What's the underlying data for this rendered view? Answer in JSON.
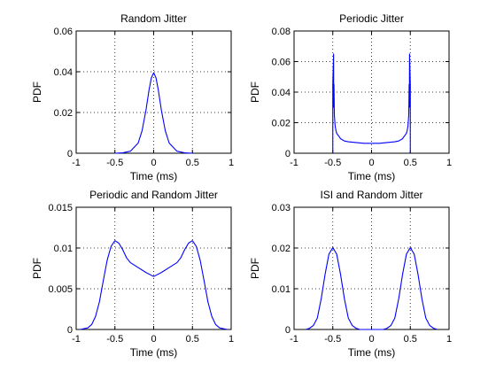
{
  "figure": {
    "background": "#ffffff",
    "line_color": "#0000ff"
  },
  "chart_data": [
    {
      "type": "line",
      "title": "Random Jitter",
      "xlabel": "Time (ms)",
      "ylabel": "PDF",
      "xlim": [
        -1,
        1
      ],
      "ylim": [
        0,
        0.06
      ],
      "xticks": [
        "-1",
        "-0.5",
        "0",
        "0.5",
        "1"
      ],
      "yticks": [
        "0",
        "0.02",
        "0.04",
        "0.06"
      ],
      "grid": true,
      "series": [
        {
          "x": [
            -0.5,
            -0.4,
            -0.3,
            -0.2,
            -0.15,
            -0.1,
            -0.06,
            -0.03,
            0,
            0.03,
            0.06,
            0.1,
            0.15,
            0.2,
            0.3,
            0.4,
            0.5
          ],
          "y": [
            0,
            0.0002,
            0.001,
            0.005,
            0.011,
            0.021,
            0.031,
            0.037,
            0.0395,
            0.037,
            0.031,
            0.021,
            0.011,
            0.005,
            0.001,
            0.0002,
            0
          ]
        }
      ]
    },
    {
      "type": "line",
      "title": "Periodic Jitter",
      "xlabel": "Time (ms)",
      "ylabel": "PDF",
      "xlim": [
        -1,
        1
      ],
      "ylim": [
        0,
        0.08
      ],
      "xticks": [
        "-1",
        "-0.5",
        "0",
        "0.5",
        "1"
      ],
      "yticks": [
        "0",
        "0.02",
        "0.04",
        "0.06",
        "0.08"
      ],
      "grid": true,
      "series": [
        {
          "x": [
            -0.5,
            -0.5,
            -0.49,
            -0.488,
            -0.485,
            -0.48,
            -0.47,
            -0.46,
            -0.45,
            -0.42,
            -0.4,
            -0.35,
            -0.3,
            -0.2,
            -0.1,
            0,
            0.1,
            0.2,
            0.3,
            0.35,
            0.4,
            0.42,
            0.45,
            0.46,
            0.47,
            0.48,
            0.485,
            0.488,
            0.49,
            0.5,
            0.5
          ],
          "y": [
            0,
            0.045,
            0.065,
            0.03,
            0.045,
            0.025,
            0.018,
            0.015,
            0.013,
            0.011,
            0.0095,
            0.008,
            0.0075,
            0.007,
            0.0065,
            0.0065,
            0.0065,
            0.007,
            0.0075,
            0.008,
            0.0095,
            0.011,
            0.013,
            0.015,
            0.018,
            0.025,
            0.045,
            0.03,
            0.065,
            0.045,
            0
          ]
        }
      ]
    },
    {
      "type": "line",
      "title": "Periodic and Random Jitter",
      "xlabel": "Time (ms)",
      "ylabel": "PDF",
      "xlim": [
        -1,
        1
      ],
      "ylim": [
        0,
        0.015
      ],
      "xticks": [
        "-1",
        "-0.5",
        "0",
        "0.5",
        "1"
      ],
      "yticks": [
        "0",
        "0.005",
        "0.01",
        "0.015"
      ],
      "grid": true,
      "series": [
        {
          "x": [
            -0.95,
            -0.85,
            -0.8,
            -0.75,
            -0.7,
            -0.65,
            -0.6,
            -0.55,
            -0.5,
            -0.45,
            -0.4,
            -0.35,
            -0.3,
            -0.25,
            -0.2,
            -0.1,
            0,
            0.1,
            0.2,
            0.25,
            0.3,
            0.35,
            0.4,
            0.45,
            0.5,
            0.55,
            0.6,
            0.65,
            0.7,
            0.75,
            0.8,
            0.85,
            0.95
          ],
          "y": [
            0,
            0.0002,
            0.0006,
            0.0016,
            0.0034,
            0.006,
            0.0085,
            0.0102,
            0.0109,
            0.0106,
            0.0098,
            0.0088,
            0.0082,
            0.0079,
            0.0076,
            0.007,
            0.0065,
            0.007,
            0.0076,
            0.0079,
            0.0082,
            0.0088,
            0.0098,
            0.0106,
            0.0109,
            0.0102,
            0.0085,
            0.006,
            0.0034,
            0.0016,
            0.0006,
            0.0002,
            0
          ]
        }
      ]
    },
    {
      "type": "line",
      "title": "ISI and Random Jitter",
      "xlabel": "Time (ms)",
      "ylabel": "PDF",
      "xlim": [
        -1,
        1
      ],
      "ylim": [
        0,
        0.03
      ],
      "xticks": [
        "-1",
        "-0.5",
        "0",
        "0.5",
        "1"
      ],
      "yticks": [
        "0",
        "0.01",
        "0.02",
        "0.03"
      ],
      "grid": true,
      "series": [
        {
          "x": [
            -0.85,
            -0.8,
            -0.75,
            -0.7,
            -0.65,
            -0.6,
            -0.55,
            -0.5,
            -0.45,
            -0.4,
            -0.35,
            -0.3,
            -0.25,
            -0.2,
            -0.15,
            0,
            0.15,
            0.2,
            0.25,
            0.3,
            0.35,
            0.4,
            0.45,
            0.5,
            0.55,
            0.6,
            0.65,
            0.7,
            0.75,
            0.8,
            0.85
          ],
          "y": [
            0,
            0.0003,
            0.001,
            0.0028,
            0.0075,
            0.0135,
            0.0185,
            0.0201,
            0.0185,
            0.0135,
            0.0075,
            0.0028,
            0.001,
            0.0003,
            0,
            0,
            0,
            0.0003,
            0.001,
            0.0028,
            0.0075,
            0.0135,
            0.0185,
            0.0201,
            0.0185,
            0.0135,
            0.0075,
            0.0028,
            0.001,
            0.0003,
            0
          ]
        }
      ]
    }
  ]
}
